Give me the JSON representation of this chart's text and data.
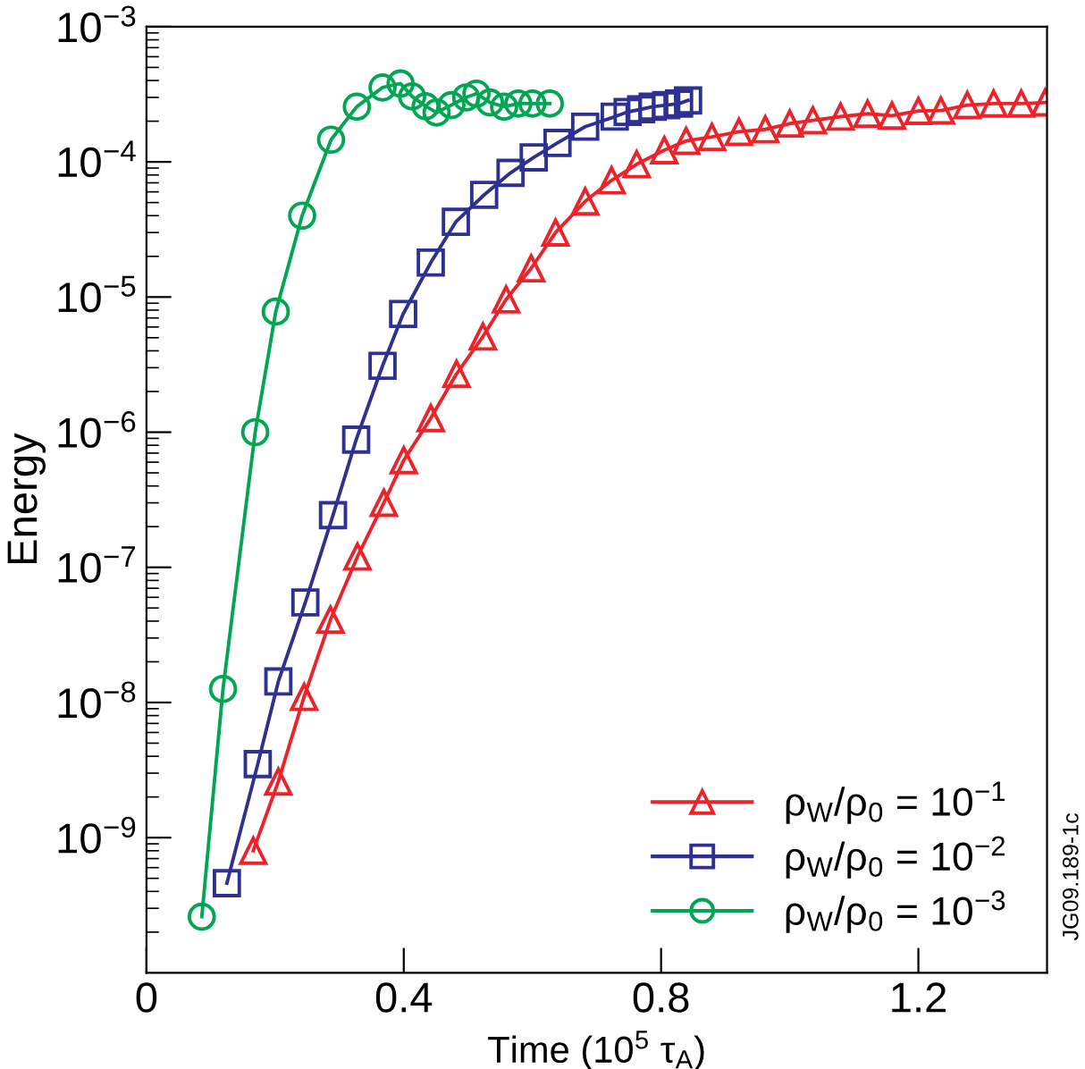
{
  "chart_data": {
    "type": "line",
    "xlabel": "Time (10$^{5}$ τ$_{A}$)",
    "ylabel": "Energy",
    "log": "y",
    "xlim": [
      0,
      1.4
    ],
    "ylim": [
      1e-10,
      0.001
    ],
    "xticks": [
      0,
      0.4,
      0.8,
      1.2
    ],
    "yticks": [
      {
        "value": 1e-09,
        "label": "10$^{−9}$"
      },
      {
        "value": 1e-08,
        "label": "10$^{−8}$"
      },
      {
        "value": 1e-07,
        "label": "10$^{−7}$"
      },
      {
        "value": 1e-06,
        "label": "10$^{−6}$"
      },
      {
        "value": 1e-05,
        "label": "10$^{−5}$"
      },
      {
        "value": 0.0001,
        "label": "10$^{−4}$"
      },
      {
        "value": 0.001,
        "label": "10$^{−3}$"
      }
    ],
    "grid": false,
    "legend": "bottom right",
    "line_style": "solid",
    "annotations": [
      "JG09.189-1c"
    ],
    "series": [
      {
        "name": "ρ$_{W}$/ρ$_{0}$ = 10$^{−1}$",
        "color": "#ee2229",
        "marker": "triangle",
        "x": [
          0.166,
          0.205,
          0.245,
          0.286,
          0.328,
          0.369,
          0.4,
          0.442,
          0.482,
          0.523,
          0.559,
          0.598,
          0.636,
          0.682,
          0.723,
          0.762,
          0.805,
          0.839,
          0.879,
          0.921,
          0.962,
          1.0,
          1.036,
          1.079,
          1.121,
          1.159,
          1.2,
          1.235,
          1.276,
          1.317,
          1.36,
          1.397
        ],
        "values": [
          8e-10,
          2.6e-09,
          1.1e-08,
          4.1e-08,
          1.2e-07,
          3e-07,
          6.2e-07,
          1.27e-06,
          2.7e-06,
          5.1e-06,
          9.6e-06,
          1.63e-05,
          3e-05,
          5.1e-05,
          7.3e-05,
          9.6e-05,
          0.000122,
          0.000143,
          0.000153,
          0.000167,
          0.000174,
          0.000192,
          0.000203,
          0.000216,
          0.000227,
          0.00022,
          0.000238,
          0.00024,
          0.000263,
          0.00027,
          0.00027,
          0.000275
        ]
      },
      {
        "name": "ρ$_{W}$/ρ$_{0}$ = 10$^{−2}$",
        "color": "#2e3192",
        "marker": "square",
        "x": [
          0.125,
          0.173,
          0.205,
          0.247,
          0.29,
          0.326,
          0.367,
          0.399,
          0.442,
          0.481,
          0.525,
          0.566,
          0.602,
          0.639,
          0.682,
          0.728,
          0.748,
          0.769,
          0.787,
          0.808,
          0.828,
          0.842
        ],
        "values": [
          4.6e-10,
          3.5e-09,
          1.43e-08,
          5.5e-08,
          2.43e-07,
          8.8e-07,
          3.1e-06,
          7.5e-06,
          1.8e-05,
          3.6e-05,
          5.7e-05,
          8.3e-05,
          0.000108,
          0.000138,
          0.000182,
          0.000216,
          0.000234,
          0.000245,
          0.000256,
          0.000263,
          0.00027,
          0.000285
        ]
      },
      {
        "name": "ρ$_{W}$/ρ$_{0}$ = 10$^{−3}$",
        "color": "#00a651",
        "marker": "circle",
        "x": [
          0.086,
          0.119,
          0.169,
          0.201,
          0.242,
          0.287,
          0.327,
          0.367,
          0.395,
          0.413,
          0.434,
          0.451,
          0.474,
          0.497,
          0.513,
          0.534,
          0.556,
          0.578,
          0.6,
          0.627
        ],
        "values": [
          2.6e-10,
          1.26e-08,
          1e-06,
          7.8e-06,
          4e-05,
          0.000146,
          0.000256,
          0.000355,
          0.00038,
          0.000305,
          0.000258,
          0.000232,
          0.000263,
          0.0003,
          0.00032,
          0.000275,
          0.000256,
          0.00027,
          0.00027,
          0.00027
        ]
      }
    ]
  }
}
